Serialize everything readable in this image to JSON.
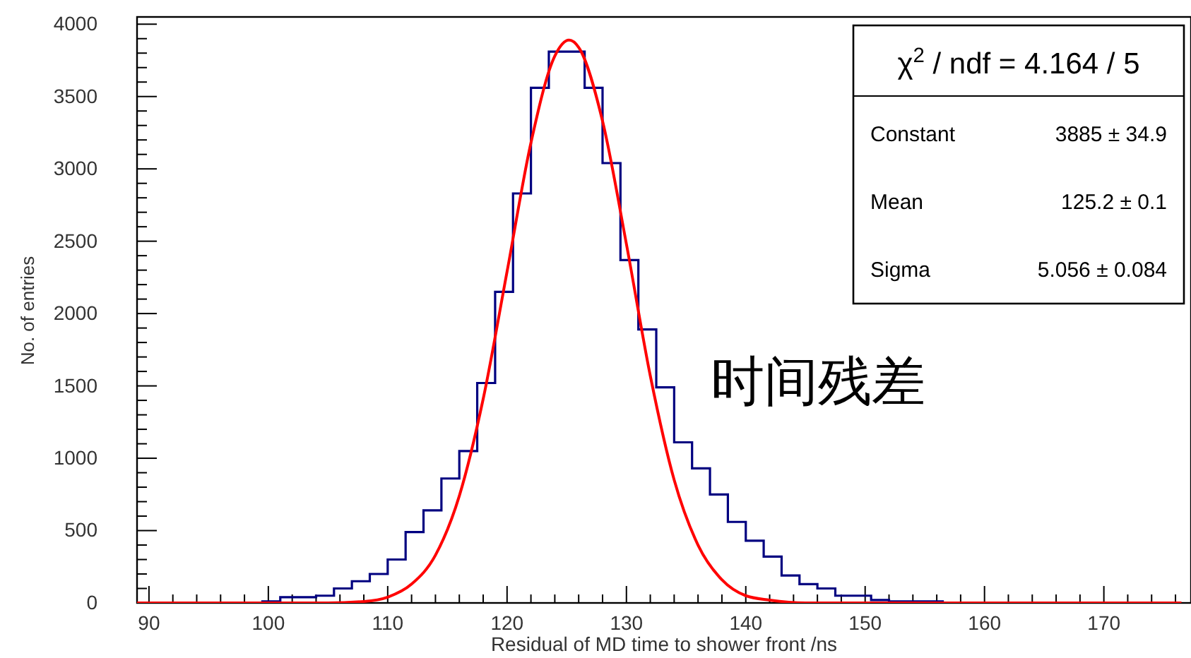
{
  "chart_data": {
    "type": "histogram",
    "xlabel": "Residual of MD time to shower front /ns",
    "ylabel": "No. of entries",
    "xlim": [
      89,
      177.3
    ],
    "ylim": [
      0,
      4050
    ],
    "xticks": [
      90,
      {
        "value": 92,
        "label": null
      },
      {
        "value": 94,
        "label": null
      },
      {
        "value": 96,
        "label": null
      },
      {
        "value": 98,
        "label": null
      },
      100,
      {
        "value": 102,
        "label": null
      },
      {
        "value": 104,
        "label": null
      },
      {
        "value": 106,
        "label": null
      },
      {
        "value": 108,
        "label": null
      },
      110,
      {
        "value": 112,
        "label": null
      },
      {
        "value": 114,
        "label": null
      },
      {
        "value": 116,
        "label": null
      },
      {
        "value": 118,
        "label": null
      },
      120,
      {
        "value": 122,
        "label": null
      },
      {
        "value": 124,
        "label": null
      },
      {
        "value": 126,
        "label": null
      },
      {
        "value": 128,
        "label": null
      },
      130,
      {
        "value": 132,
        "label": null
      },
      {
        "value": 134,
        "label": null
      },
      {
        "value": 136,
        "label": null
      },
      {
        "value": 138,
        "label": null
      },
      140,
      {
        "value": 142,
        "label": null
      },
      {
        "value": 144,
        "label": null
      },
      {
        "value": 146,
        "label": null
      },
      {
        "value": 148,
        "label": null
      },
      150,
      {
        "value": 152,
        "label": null
      },
      {
        "value": 154,
        "label": null
      },
      {
        "value": 156,
        "label": null
      },
      {
        "value": 158,
        "label": null
      },
      160,
      {
        "value": 162,
        "label": null
      },
      {
        "value": 164,
        "label": null
      },
      {
        "value": 166,
        "label": null
      },
      {
        "value": 168,
        "label": null
      },
      170,
      {
        "value": 172,
        "label": null
      },
      {
        "value": 174,
        "label": null
      },
      {
        "value": 176,
        "label": null
      }
    ],
    "yticks": [
      0,
      {
        "value": 100,
        "label": null
      },
      {
        "value": 200,
        "label": null
      },
      {
        "value": 300,
        "label": null
      },
      {
        "value": 400,
        "label": null
      },
      500,
      {
        "value": 600,
        "label": null
      },
      {
        "value": 700,
        "label": null
      },
      {
        "value": 800,
        "label": null
      },
      {
        "value": 900,
        "label": null
      },
      1000,
      {
        "value": 1100,
        "label": null
      },
      {
        "value": 1200,
        "label": null
      },
      {
        "value": 1300,
        "label": null
      },
      {
        "value": 1400,
        "label": null
      },
      1500,
      {
        "value": 1600,
        "label": null
      },
      {
        "value": 1700,
        "label": null
      },
      {
        "value": 1800,
        "label": null
      },
      {
        "value": 1900,
        "label": null
      },
      2000,
      {
        "value": 2100,
        "label": null
      },
      {
        "value": 2200,
        "label": null
      },
      {
        "value": 2300,
        "label": null
      },
      {
        "value": 2400,
        "label": null
      },
      2500,
      {
        "value": 2600,
        "label": null
      },
      {
        "value": 2700,
        "label": null
      },
      {
        "value": 2800,
        "label": null
      },
      {
        "value": 2900,
        "label": null
      },
      3000,
      {
        "value": 3100,
        "label": null
      },
      {
        "value": 3200,
        "label": null
      },
      {
        "value": 3300,
        "label": null
      },
      {
        "value": 3400,
        "label": null
      },
      3500,
      {
        "value": 3600,
        "label": null
      },
      {
        "value": 3700,
        "label": null
      },
      {
        "value": 3800,
        "label": null
      },
      {
        "value": 3900,
        "label": null
      },
      4000
    ],
    "series": [
      {
        "type": "histogram",
        "color": "#000080",
        "bins": [
          99.5,
          101,
          102.5,
          104,
          105.5,
          107,
          108.5,
          110,
          111.5,
          113,
          114.5,
          116,
          117.5,
          119,
          120.5,
          122,
          123.5,
          125,
          126.5,
          128,
          129.5,
          131,
          132.5,
          134,
          135.5,
          137,
          138.5,
          140,
          141.5,
          143,
          144.5,
          146,
          147.5,
          149,
          150.5,
          152,
          153.5,
          155,
          156.5
        ],
        "values": [
          10,
          40,
          40,
          50,
          100,
          150,
          200,
          300,
          490,
          640,
          860,
          1050,
          1520,
          2150,
          2830,
          3560,
          3810,
          3810,
          3560,
          3040,
          2370,
          1890,
          1490,
          1110,
          930,
          750,
          560,
          430,
          320,
          190,
          130,
          100,
          50,
          50,
          20,
          10,
          10,
          10
        ]
      },
      {
        "type": "line",
        "color": "#ff0000",
        "x": [
          89,
          105,
          108,
          110,
          112,
          114,
          116,
          118,
          120,
          122,
          124,
          125.2,
          126,
          128,
          130,
          132,
          134,
          136,
          138,
          140,
          142,
          145,
          160,
          176.5
        ],
        "values": [
          0,
          0,
          10,
          40,
          130,
          330,
          740,
          1410,
          2290,
          3180,
          3780,
          3890,
          3840,
          3330,
          2480,
          1570,
          850,
          400,
          160,
          50,
          20,
          0,
          0,
          0
        ]
      }
    ],
    "annotations": [
      "χ$^{2}$ / ndf = 4.164 / 5",
      "Constant",
      "3885 ± 34.9",
      "Mean",
      "125.2 ± 0.1",
      "Sigma",
      "5.056 ± 0.084",
      "时间残差"
    ],
    "grid": false
  }
}
